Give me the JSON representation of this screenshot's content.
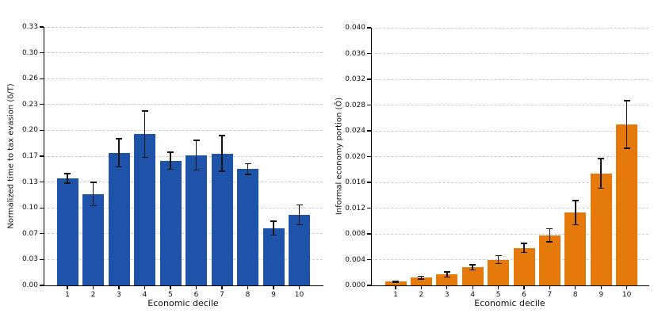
{
  "figure": {
    "background": "#ffffff",
    "panels": 2
  },
  "chart_data": [
    {
      "type": "bar",
      "panel": "left",
      "title": "",
      "xlabel": "Economic decile",
      "ylabel": "Normalized time to tax evasion (δ/T)",
      "categories": [
        "1",
        "2",
        "3",
        "4",
        "5",
        "6",
        "7",
        "8",
        "9",
        "10"
      ],
      "values": [
        0.138,
        0.118,
        0.171,
        0.195,
        0.161,
        0.168,
        0.17,
        0.15,
        0.074,
        0.091
      ],
      "errors": [
        0.006,
        0.015,
        0.018,
        0.03,
        0.011,
        0.019,
        0.023,
        0.007,
        0.009,
        0.013
      ],
      "bar_color": "#1d53a8",
      "error_color": "#141414",
      "ylim": [
        0,
        0.3333
      ],
      "ytick_labels": [
        "0.00",
        "0.03",
        "0.07",
        "0.10",
        "0.13",
        "0.17",
        "0.20",
        "0.23",
        "0.26",
        "0.30",
        "0.33"
      ],
      "grid": "horizontal-dashed",
      "legend": "none"
    },
    {
      "type": "bar",
      "panel": "right",
      "title": "",
      "xlabel": "Economic decile",
      "ylabel": "Informal economy portion (Ō)",
      "categories": [
        "1",
        "2",
        "3",
        "4",
        "5",
        "6",
        "7",
        "8",
        "9",
        "10"
      ],
      "values": [
        0.0006,
        0.0012,
        0.0017,
        0.0028,
        0.004,
        0.0058,
        0.0078,
        0.0113,
        0.0174,
        0.025
      ],
      "errors": [
        0.0001,
        0.0002,
        0.0004,
        0.0004,
        0.0006,
        0.0007,
        0.001,
        0.0019,
        0.0023,
        0.0037
      ],
      "bar_color": "#e5790a",
      "error_color": "#141414",
      "ylim": [
        0,
        0.04
      ],
      "ytick_labels": [
        "0.000",
        "0.004",
        "0.008",
        "0.012",
        "0.016",
        "0.020",
        "0.024",
        "0.028",
        "0.032",
        "0.036",
        "0.040"
      ],
      "grid": "horizontal-dashed",
      "legend": "none"
    }
  ]
}
